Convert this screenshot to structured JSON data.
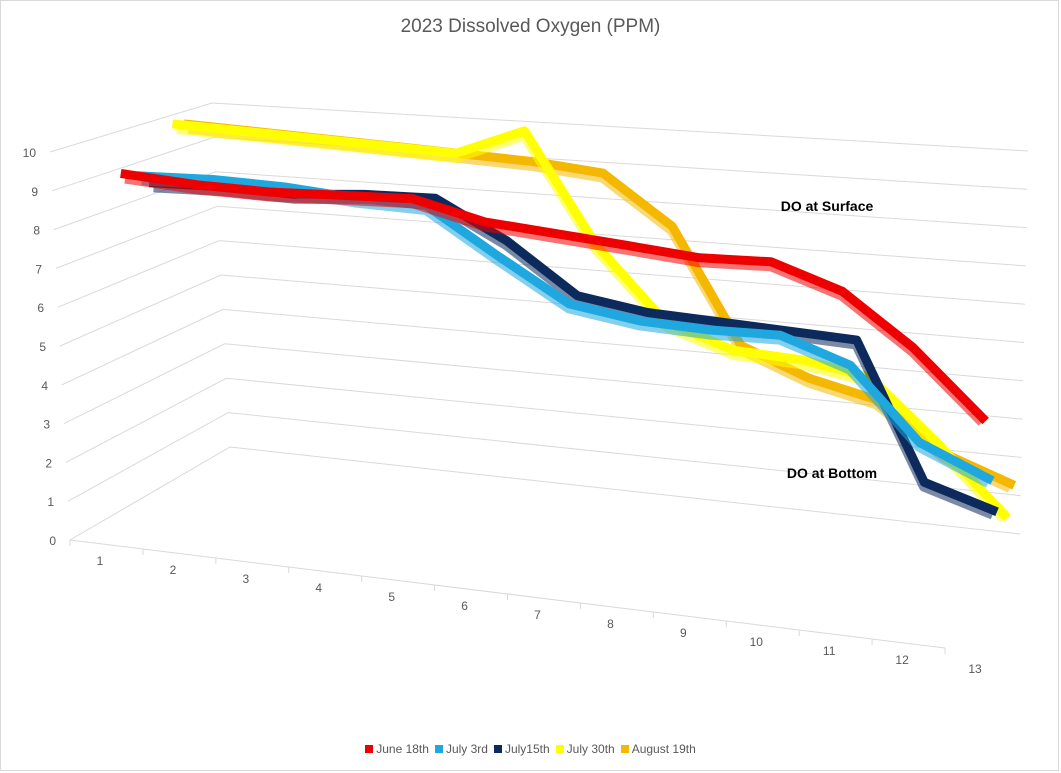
{
  "chart_data": {
    "type": "line",
    "title": "2023 Dissolved Oxygen (PPM)",
    "x": [
      1,
      2,
      3,
      4,
      5,
      6,
      7,
      8,
      9,
      10,
      11,
      12,
      13
    ],
    "y_ticks": [
      0,
      1,
      2,
      3,
      4,
      5,
      6,
      7,
      8,
      9,
      10
    ],
    "ylim": [
      0,
      10
    ],
    "grid": true,
    "legend_position": "bottom",
    "annotations": [
      {
        "text": "DO at Surface",
        "near": "upper-right"
      },
      {
        "text": "DO at Bottom",
        "near": "lower-right"
      }
    ],
    "series": [
      {
        "name": "August 19th",
        "color": "#f5b800",
        "values": [
          9.6,
          9.5,
          9.4,
          9.3,
          9.2,
          9.1,
          8.9,
          7.6,
          4.6,
          3.9,
          3.5,
          2.3,
          1.7
        ]
      },
      {
        "name": "July 30th",
        "color": "#ffff00",
        "values": [
          9.7,
          9.6,
          9.5,
          9.4,
          9.3,
          10.0,
          7.1,
          5.2,
          4.6,
          4.5,
          4.2,
          2.7,
          1.1
        ]
      },
      {
        "name": "July15th",
        "color": "#0d2a5c",
        "values": [
          8.3,
          8.3,
          8.2,
          8.3,
          8.3,
          7.3,
          6.0,
          5.7,
          5.6,
          5.5,
          5.4,
          2.1,
          1.6
        ]
      },
      {
        "name": "July 3rd",
        "color": "#1fa8e0",
        "values": [
          8.6,
          8.6,
          8.5,
          8.3,
          8.2,
          7.0,
          5.9,
          5.6,
          5.5,
          5.5,
          4.9,
          3.2,
          2.5
        ]
      },
      {
        "name": "June 18th",
        "color": "#ee0000",
        "values": [
          8.8,
          8.6,
          8.5,
          8.5,
          8.5,
          8.0,
          7.8,
          7.6,
          7.4,
          7.4,
          6.8,
          5.6,
          4.1
        ]
      }
    ],
    "legend_order": [
      "June 18th",
      "July 3rd",
      "July15th",
      "July 30th",
      "August 19th"
    ]
  }
}
